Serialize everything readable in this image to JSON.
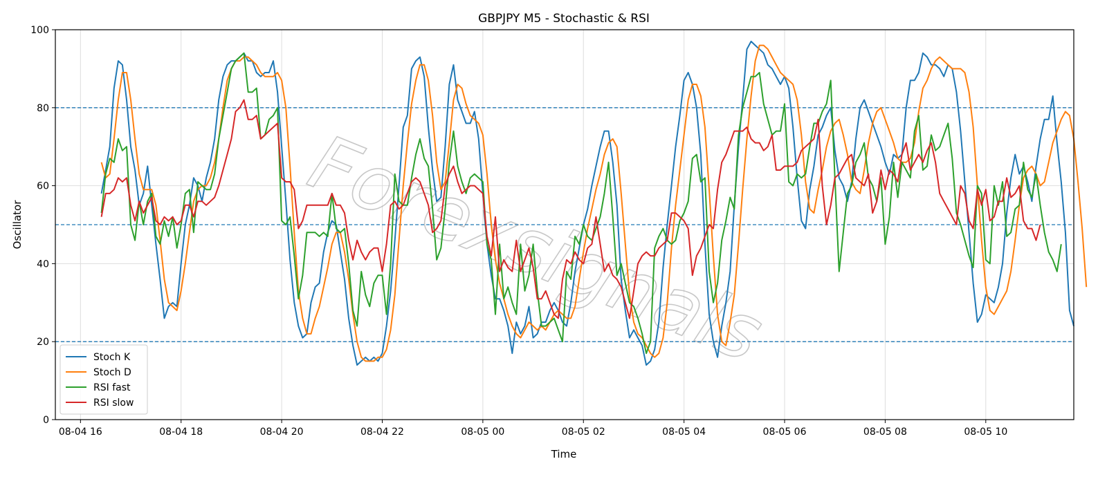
{
  "chart_data": {
    "type": "line",
    "title": "GBPJPY M5 - Stochastic & RSI",
    "xlabel": "Time",
    "ylabel": "Oscillator",
    "ylim": [
      0,
      100
    ],
    "xlim": [
      "08-04 15:30",
      "08-05 11:45"
    ],
    "x_start": "08-04 16:25",
    "x_step_minutes": 5,
    "x_ticks": [
      "08-04 16",
      "08-04 18",
      "08-04 20",
      "08-04 22",
      "08-05 00",
      "08-05 02",
      "08-05 04",
      "08-05 06",
      "08-05 08",
      "08-05 10"
    ],
    "y_ticks": [
      0,
      20,
      40,
      60,
      80,
      100
    ],
    "grid": true,
    "reference_lines": [
      80,
      50,
      20
    ],
    "reference_line_color": "#1f77b4",
    "legend": "bottom-left",
    "watermark": "Forexsignals",
    "series": [
      {
        "name": "Stoch K",
        "color": "#1f77b4",
        "values": [
          58,
          64,
          70,
          85,
          92,
          91,
          82,
          70,
          64,
          55,
          58,
          65,
          55,
          45,
          36,
          26,
          29,
          30,
          29,
          40,
          50,
          55,
          62,
          60,
          56,
          62,
          66,
          72,
          82,
          88,
          91,
          92,
          92,
          93,
          94,
          92,
          92,
          89,
          88,
          89,
          89,
          92,
          84,
          70,
          56,
          41,
          30,
          24,
          21,
          22,
          30,
          34,
          35,
          43,
          48,
          51,
          50,
          43,
          36,
          26,
          19,
          14,
          15,
          16,
          15,
          16,
          15,
          17,
          24,
          33,
          46,
          60,
          75,
          78,
          90,
          92,
          93,
          88,
          75,
          64,
          56,
          57,
          70,
          86,
          91,
          82,
          79,
          76,
          76,
          79,
          72,
          58,
          45,
          37,
          31,
          31,
          28,
          24,
          17,
          25,
          22,
          24,
          29,
          21,
          22,
          25,
          25,
          28,
          30,
          28,
          25,
          24,
          30,
          38,
          44,
          50,
          54,
          60,
          65,
          70,
          74,
          74,
          66,
          55,
          36,
          28,
          21,
          23,
          21,
          19,
          14,
          15,
          18,
          25,
          39,
          50,
          60,
          70,
          78,
          87,
          89,
          86,
          80,
          68,
          45,
          27,
          20,
          16,
          24,
          30,
          38,
          55,
          70,
          82,
          95,
          97,
          96,
          95,
          94,
          91,
          90,
          88,
          86,
          88,
          85,
          75,
          62,
          51,
          49,
          59,
          65,
          73,
          75,
          78,
          80,
          69,
          62,
          60,
          56,
          61,
          72,
          80,
          82,
          79,
          76,
          73,
          70,
          66,
          63,
          68,
          67,
          68,
          80,
          87,
          87,
          89,
          94,
          93,
          91,
          91,
          90,
          88,
          91,
          90,
          84,
          74,
          61,
          48,
          35,
          25,
          27,
          32,
          31,
          30,
          34,
          40,
          53,
          62,
          68,
          63,
          65,
          61,
          56,
          65,
          72,
          77,
          77,
          83,
          71,
          61,
          48,
          28,
          24
        ]
      },
      {
        "name": "Stoch D",
        "color": "#ff7f0e",
        "values": [
          66,
          62,
          63,
          72,
          82,
          89,
          89,
          82,
          72,
          63,
          59,
          59,
          59,
          55,
          46,
          36,
          30,
          29,
          28,
          33,
          40,
          48,
          56,
          59,
          60,
          60,
          62,
          66,
          72,
          80,
          87,
          90,
          92,
          92,
          93,
          93,
          92,
          91,
          89,
          88,
          88,
          88,
          89,
          87,
          80,
          65,
          48,
          33,
          26,
          22,
          22,
          26,
          29,
          34,
          39,
          45,
          48,
          48,
          43,
          36,
          27,
          20,
          16,
          15,
          15,
          15,
          16,
          16,
          18,
          23,
          32,
          46,
          60,
          71,
          81,
          87,
          91,
          91,
          87,
          78,
          66,
          59,
          61,
          71,
          82,
          86,
          85,
          81,
          78,
          77,
          76,
          73,
          63,
          50,
          41,
          35,
          31,
          27,
          24,
          22,
          21,
          23,
          25,
          24,
          23,
          24,
          23,
          25,
          27,
          28,
          27,
          26,
          26,
          29,
          36,
          43,
          49,
          54,
          59,
          63,
          68,
          71,
          72,
          70,
          58,
          45,
          32,
          25,
          22,
          21,
          19,
          17,
          16,
          17,
          21,
          30,
          44,
          55,
          64,
          73,
          82,
          86,
          86,
          83,
          75,
          59,
          42,
          27,
          20,
          19,
          25,
          32,
          45,
          59,
          72,
          83,
          92,
          96,
          96,
          95,
          93,
          91,
          89,
          88,
          87,
          86,
          82,
          73,
          61,
          54,
          53,
          59,
          64,
          70,
          74,
          76,
          77,
          73,
          68,
          61,
          59,
          58,
          64,
          71,
          76,
          79,
          80,
          77,
          74,
          71,
          67,
          66,
          66,
          67,
          71,
          79,
          85,
          87,
          90,
          92,
          93,
          92,
          91,
          90,
          90,
          90,
          89,
          84,
          75,
          60,
          46,
          34,
          28,
          27,
          29,
          31,
          33,
          38,
          46,
          55,
          62,
          64,
          65,
          63,
          60,
          61,
          66,
          71,
          74,
          77,
          79,
          78,
          72,
          61,
          49,
          34
        ]
      },
      {
        "name": "RSI fast",
        "color": "#2ca02c",
        "values": [
          53,
          63,
          67,
          66,
          72,
          69,
          70,
          50,
          46,
          56,
          50,
          56,
          58,
          47,
          45,
          51,
          47,
          52,
          44,
          50,
          58,
          59,
          48,
          61,
          60,
          59,
          59,
          63,
          72,
          78,
          84,
          90,
          92,
          93,
          94,
          84,
          84,
          85,
          72,
          73,
          77,
          78,
          80,
          51,
          50,
          52,
          42,
          31,
          37,
          48,
          48,
          48,
          47,
          48,
          47,
          58,
          49,
          48,
          49,
          40,
          28,
          24,
          38,
          32,
          29,
          35,
          37,
          37,
          27,
          40,
          63,
          56,
          55,
          55,
          62,
          68,
          72,
          67,
          65,
          54,
          41,
          44,
          54,
          66,
          74,
          65,
          61,
          58,
          62,
          63,
          62,
          61,
          45,
          41,
          27,
          45,
          31,
          34,
          30,
          27,
          45,
          33,
          37,
          45,
          33,
          24,
          24,
          25,
          26,
          23,
          20,
          38,
          36,
          47,
          45,
          50,
          47,
          46,
          49,
          52,
          58,
          66,
          52,
          37,
          40,
          35,
          30,
          29,
          26,
          22,
          17,
          20,
          44,
          47,
          49,
          46,
          45,
          46,
          51,
          53,
          56,
          67,
          68,
          61,
          62,
          38,
          30,
          35,
          46,
          51,
          57,
          54,
          73,
          80,
          84,
          88,
          88,
          89,
          81,
          77,
          73,
          74,
          74,
          81,
          61,
          60,
          63,
          62,
          63,
          70,
          76,
          76,
          79,
          81,
          87,
          62,
          38,
          48,
          58,
          60,
          66,
          68,
          71,
          62,
          60,
          56,
          62,
          45,
          52,
          66,
          57,
          66,
          64,
          62,
          74,
          78,
          64,
          65,
          73,
          69,
          70,
          73,
          76,
          67,
          53,
          50,
          46,
          42,
          39,
          60,
          58,
          41,
          40,
          60,
          55,
          61,
          47,
          48,
          54,
          55,
          66,
          59,
          57,
          63,
          55,
          48,
          43,
          41,
          38,
          45
        ]
      },
      {
        "name": "RSI slow",
        "color": "#d62728",
        "values": [
          52,
          58,
          58,
          59,
          62,
          61,
          62,
          55,
          51,
          56,
          53,
          55,
          57,
          51,
          50,
          52,
          51,
          52,
          50,
          51,
          55,
          55,
          52,
          56,
          56,
          55,
          56,
          57,
          60,
          64,
          68,
          72,
          79,
          80,
          82,
          77,
          77,
          78,
          72,
          73,
          74,
          75,
          76,
          62,
          61,
          61,
          59,
          49,
          51,
          55,
          55,
          55,
          55,
          55,
          55,
          58,
          55,
          55,
          53,
          46,
          41,
          46,
          43,
          41,
          43,
          44,
          44,
          38,
          45,
          55,
          56,
          54,
          55,
          58,
          61,
          62,
          61,
          58,
          55,
          48,
          49,
          51,
          60,
          63,
          65,
          61,
          58,
          59,
          60,
          60,
          59,
          58,
          47,
          42,
          52,
          38,
          41,
          39,
          38,
          46,
          38,
          41,
          44,
          39,
          31,
          31,
          33,
          30,
          27,
          26,
          36,
          41,
          40,
          43,
          41,
          40,
          44,
          45,
          52,
          45,
          38,
          40,
          37,
          36,
          34,
          30,
          26,
          33,
          40,
          42,
          43,
          42,
          42,
          44,
          45,
          46,
          53,
          53,
          52,
          51,
          49,
          37,
          42,
          44,
          47,
          50,
          49,
          59,
          66,
          68,
          71,
          74,
          74,
          74,
          75,
          72,
          71,
          71,
          69,
          70,
          73,
          64,
          64,
          65,
          65,
          65,
          66,
          69,
          70,
          71,
          72,
          77,
          60,
          50,
          55,
          62,
          63,
          65,
          67,
          68,
          62,
          61,
          60,
          63,
          53,
          56,
          64,
          59,
          64,
          63,
          61,
          68,
          71,
          64,
          66,
          68,
          66,
          69,
          71,
          66,
          58,
          56,
          54,
          52,
          50,
          60,
          58,
          51,
          49,
          59,
          55,
          59,
          51,
          52,
          56,
          56,
          62,
          57,
          58,
          60,
          51,
          49,
          49,
          46,
          50
        ]
      }
    ]
  }
}
